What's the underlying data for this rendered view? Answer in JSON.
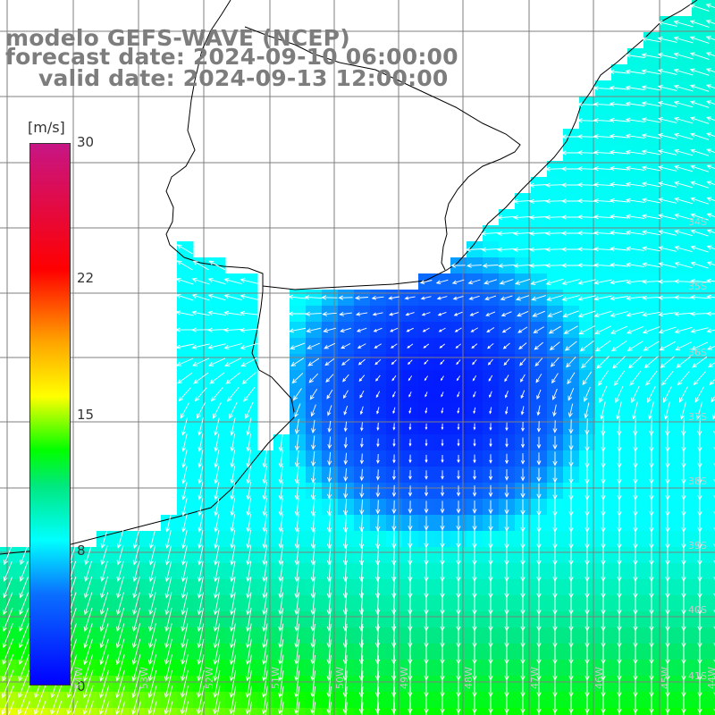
{
  "title": {
    "line1": "modelo GEFS-WAVE (NCEP)",
    "line2": "forecast date: 2024-09-10 06:00:00",
    "line3": "valid date: 2024-09-13 12:00:00"
  },
  "colorbar": {
    "unit": "[m/s]",
    "ticks": [
      "30",
      "22",
      "15",
      "8",
      "0"
    ],
    "tick_values": [
      30,
      22,
      15,
      8,
      0
    ],
    "min": 0,
    "max": 30,
    "stops": [
      {
        "value": 0,
        "color": "#0000ff"
      },
      {
        "value": 5,
        "color": "#0a6fff"
      },
      {
        "value": 8,
        "color": "#00ffff"
      },
      {
        "value": 11,
        "color": "#00e880"
      },
      {
        "value": 13,
        "color": "#00ff00"
      },
      {
        "value": 16,
        "color": "#ffff00"
      },
      {
        "value": 19,
        "color": "#ffa500"
      },
      {
        "value": 23,
        "color": "#ff0000"
      },
      {
        "value": 30,
        "color": "#c71585"
      }
    ]
  },
  "map": {
    "lon_labels": [
      "54W",
      "53W",
      "52W",
      "51W",
      "50W",
      "49W",
      "48W",
      "47W",
      "46W",
      "45W",
      "44W"
    ],
    "lat_labels": [
      "34S",
      "35S",
      "36S",
      "37S",
      "38S",
      "39S",
      "40S",
      "41S"
    ],
    "colors": {
      "land": "#ffffff",
      "coast": "#000000",
      "grid": "#7f7f7f",
      "arrows": "#ffffff"
    }
  }
}
